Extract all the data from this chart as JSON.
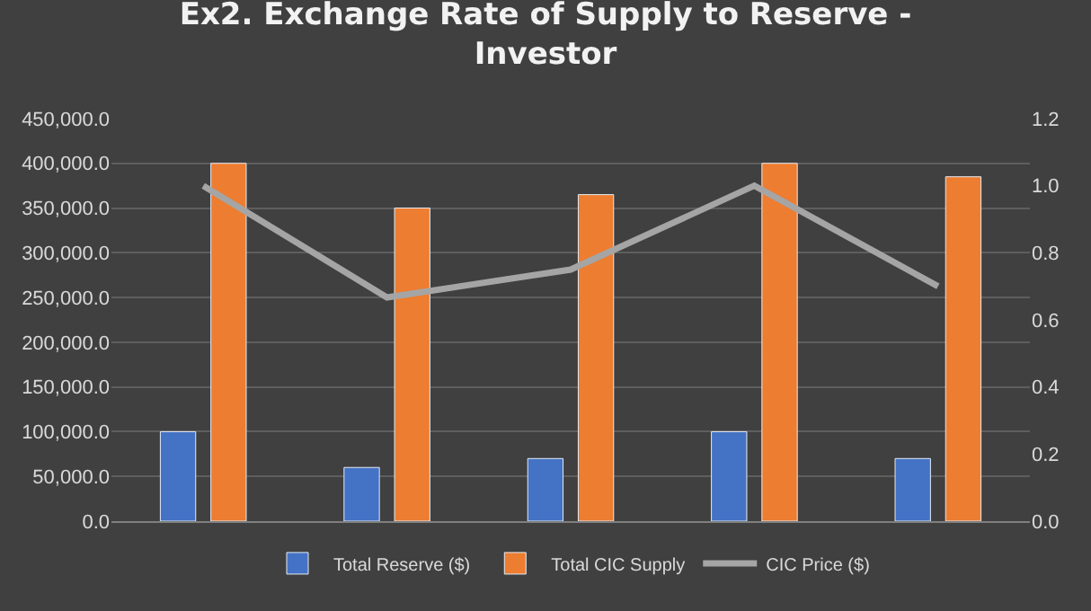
{
  "chart_data": {
    "type": "bar",
    "title": "Ex2. Exchange Rate of Supply to Reserve - Investor",
    "categories": [
      null,
      null,
      null,
      null,
      null
    ],
    "series": [
      {
        "name": "Total Reserve ($)",
        "color": "#4472c4",
        "values": [
          100000,
          60000,
          70000,
          100000,
          70000
        ]
      },
      {
        "name": "Total CIC Supply",
        "color": "#ed7d31",
        "values": [
          400000,
          350000,
          365000,
          400000,
          385000
        ]
      },
      {
        "name": "CIC Price ($)",
        "color": "#a5a5a5",
        "type": "line",
        "axis": "y2",
        "marker": "none",
        "values": [
          1.0,
          0.667,
          0.75,
          1.0,
          0.7
        ]
      }
    ],
    "ylim": [
      0,
      450000
    ],
    "yticks": [
      {
        "value": 0,
        "label": "0.0"
      },
      {
        "value": 50000,
        "label": "50,000.0"
      },
      {
        "value": 100000,
        "label": "100,000.0"
      },
      {
        "value": 150000,
        "label": "150,000.0"
      },
      {
        "value": 200000,
        "label": "200,000.0"
      },
      {
        "value": 250000,
        "label": "250,000.0"
      },
      {
        "value": 300000,
        "label": "300,000.0"
      },
      {
        "value": 350000,
        "label": "350,000.0"
      },
      {
        "value": 400000,
        "label": "400,000.0"
      },
      {
        "value": 450000,
        "label": "450,000.0"
      }
    ],
    "y2lim": [
      0,
      1.2
    ],
    "y2ticks": [
      {
        "value": 0,
        "label": "0.0"
      },
      {
        "value": 0.2,
        "label": "0.2"
      },
      {
        "value": 0.4,
        "label": "0.4"
      },
      {
        "value": 0.6,
        "label": "0.6"
      },
      {
        "value": 0.8,
        "label": "0.8"
      },
      {
        "value": 1.0,
        "label": "1.0"
      },
      {
        "value": 1.2,
        "label": "1.2"
      }
    ],
    "grid": "y",
    "legend": "bottom"
  }
}
